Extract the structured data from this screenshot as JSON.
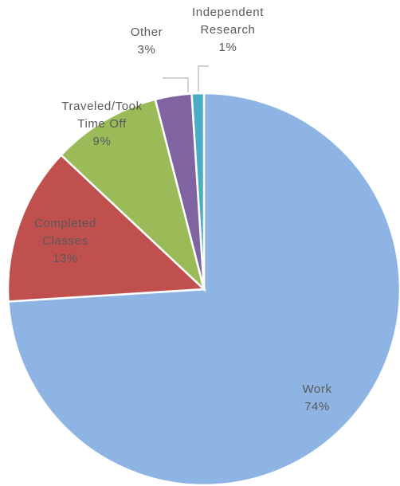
{
  "chart_data": {
    "type": "pie",
    "categories": [
      "Work",
      "Completed\nClasses",
      "Traveled/Took\nTime Off",
      "Other",
      "Independent\nResearch"
    ],
    "values": [
      74,
      13,
      9,
      3,
      1
    ],
    "value_labels": [
      "74%",
      "13%",
      "9%",
      "3%",
      "1%"
    ],
    "colors": [
      "#8eb4e3",
      "#c0504d",
      "#9bbb59",
      "#8064a2",
      "#4bacc6"
    ]
  }
}
